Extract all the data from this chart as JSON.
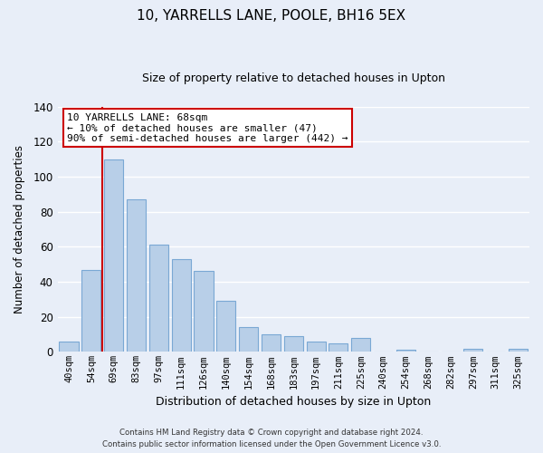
{
  "title": "10, YARRELLS LANE, POOLE, BH16 5EX",
  "subtitle": "Size of property relative to detached houses in Upton",
  "xlabel": "Distribution of detached houses by size in Upton",
  "ylabel": "Number of detached properties",
  "bar_labels": [
    "40sqm",
    "54sqm",
    "69sqm",
    "83sqm",
    "97sqm",
    "111sqm",
    "126sqm",
    "140sqm",
    "154sqm",
    "168sqm",
    "183sqm",
    "197sqm",
    "211sqm",
    "225sqm",
    "240sqm",
    "254sqm",
    "268sqm",
    "282sqm",
    "297sqm",
    "311sqm",
    "325sqm"
  ],
  "bar_values": [
    6,
    47,
    110,
    87,
    61,
    53,
    46,
    29,
    14,
    10,
    9,
    6,
    5,
    8,
    0,
    1,
    0,
    0,
    2,
    0,
    2
  ],
  "bar_color": "#b8cfe8",
  "bar_edge_color": "#7aa8d4",
  "highlight_line_index": 2,
  "highlight_line_color": "#cc0000",
  "ylim": [
    0,
    140
  ],
  "yticks": [
    0,
    20,
    40,
    60,
    80,
    100,
    120,
    140
  ],
  "annotation_text": "10 YARRELLS LANE: 68sqm\n← 10% of detached houses are smaller (47)\n90% of semi-detached houses are larger (442) →",
  "annotation_box_facecolor": "#ffffff",
  "annotation_box_edgecolor": "#cc0000",
  "footer_line1": "Contains HM Land Registry data © Crown copyright and database right 2024.",
  "footer_line2": "Contains public sector information licensed under the Open Government Licence v3.0.",
  "background_color": "#e8eef8",
  "grid_color": "#ffffff",
  "fig_width": 6.0,
  "fig_height": 5.0,
  "dpi": 100
}
